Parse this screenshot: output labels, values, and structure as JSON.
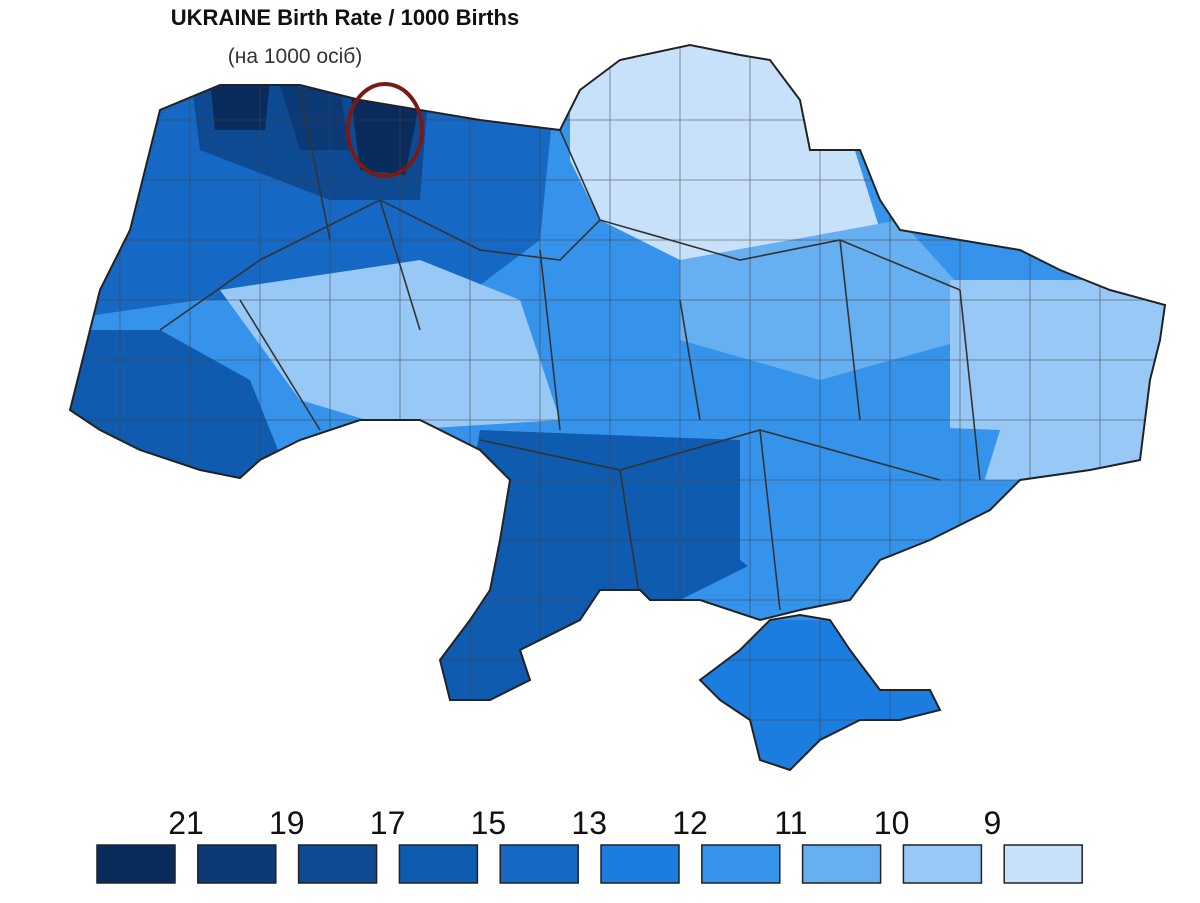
{
  "title": "UKRAINE Birth Rate / 1000 Births",
  "subtitle": "(на 1000 осіб)",
  "legend": {
    "labels": [
      21,
      19,
      17,
      15,
      13,
      12,
      11,
      10,
      9
    ],
    "colors": [
      "#0a2c5c",
      "#0c3a76",
      "#0d4a92",
      "#0f5bb0",
      "#1569c4",
      "#1c7de0",
      "#3593ec",
      "#66aff1",
      "#98c9f6",
      "#c8e1fb"
    ]
  }
}
